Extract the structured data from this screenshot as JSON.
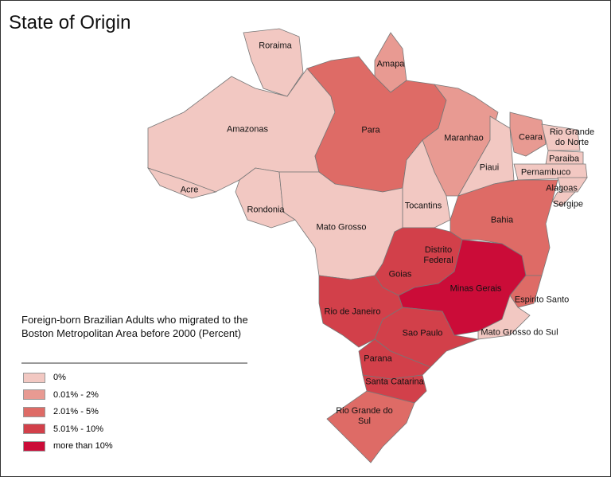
{
  "title": "State of Origin",
  "legend": {
    "title": "Foreign-born Brazilian Adults who migrated to the Boston Metropolitan Area before 2000 (Percent)",
    "classes": [
      {
        "label": "0%",
        "color": "#f2c8c2"
      },
      {
        "label": "0.01% - 2%",
        "color": "#e89a92"
      },
      {
        "label": "2.01% - 5%",
        "color": "#de6b66"
      },
      {
        "label": "5.01% - 10%",
        "color": "#d2404a"
      },
      {
        "label": "more than 10%",
        "color": "#cb0c38"
      }
    ]
  },
  "states": [
    {
      "name": "Roraima",
      "color": "#f2c8c2"
    },
    {
      "name": "Amapa",
      "color": "#e89a92"
    },
    {
      "name": "Amazonas",
      "color": "#f2c8c2"
    },
    {
      "name": "Acre",
      "color": "#f2c8c2"
    },
    {
      "name": "Para",
      "color": "#de6b66"
    },
    {
      "name": "Maranhao",
      "color": "#e89a92"
    },
    {
      "name": "Ceara",
      "color": "#e89a92"
    },
    {
      "name": "Rio Grande do Norte",
      "color": "#f2c8c2"
    },
    {
      "name": "Paraiba",
      "color": "#f2c8c2"
    },
    {
      "name": "Piaui",
      "color": "#f2c8c2"
    },
    {
      "name": "Pernambuco",
      "color": "#f2c8c2"
    },
    {
      "name": "Alagoas",
      "color": "#f2c8c2"
    },
    {
      "name": "Sergipe",
      "color": "#f2c8c2"
    },
    {
      "name": "Tocantins",
      "color": "#f2c8c2"
    },
    {
      "name": "Bahia",
      "color": "#de6b66"
    },
    {
      "name": "Rondonia",
      "color": "#f2c8c2"
    },
    {
      "name": "Mato Grosso",
      "color": "#f2c8c2"
    },
    {
      "name": "Distrito Federal",
      "color": "#d2404a"
    },
    {
      "name": "Goias",
      "color": "#d2404a"
    },
    {
      "name": "Minas Gerais",
      "color": "#cb0c38"
    },
    {
      "name": "Espirito Santo",
      "color": "#de6b66"
    },
    {
      "name": "Mato Grosso do Sul",
      "color": "#f2c8c2"
    },
    {
      "name": "Sao Paulo",
      "color": "#d2404a"
    },
    {
      "name": "Rio de Janeiro",
      "color": "#d2404a"
    },
    {
      "name": "Parana",
      "color": "#d2404a"
    },
    {
      "name": "Santa Catarina",
      "color": "#d2404a"
    },
    {
      "name": "Rio Grande do Sul",
      "color": "#de6b66"
    }
  ]
}
